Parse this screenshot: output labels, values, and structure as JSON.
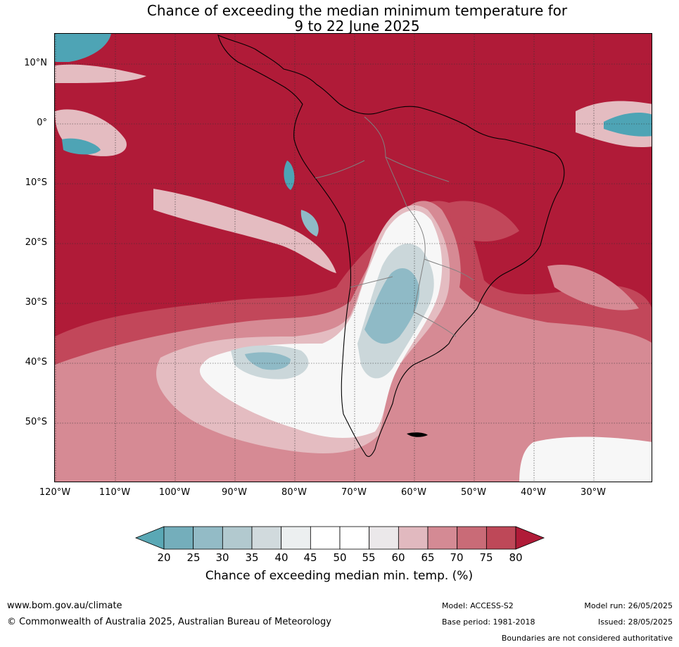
{
  "title": {
    "line1": "Chance of exceeding the median minimum temperature for",
    "line2": "9 to 22 June 2025"
  },
  "map": {
    "lat_labels": [
      "10°N",
      "0°",
      "10°S",
      "20°S",
      "30°S",
      "40°S",
      "50°S"
    ],
    "lon_labels": [
      "120°W",
      "110°W",
      "100°W",
      "90°W",
      "80°W",
      "70°W",
      "60°W",
      "50°W",
      "40°W",
      "30°W"
    ],
    "colors": {
      "very_high": "#b01b38",
      "high": "#c2475a",
      "mid_high": "#d68a94",
      "low_high": "#e4bcc1",
      "neutral": "#f7f7f7",
      "low": "#cbd7da",
      "lower": "#8fbac6",
      "lowest": "#4ea4b5",
      "coast": "#000000",
      "border": "#808080"
    }
  },
  "colorbar": {
    "ticks": [
      "20",
      "25",
      "30",
      "35",
      "40",
      "45",
      "50",
      "55",
      "60",
      "65",
      "70",
      "75",
      "80"
    ],
    "colors": [
      "#5aa8b5",
      "#74aebb",
      "#93bbc6",
      "#b2c9cf",
      "#d1dadd",
      "#eceff0",
      "#ffffff",
      "#ffffff",
      "#ebe8ea",
      "#e1b9bf",
      "#d48a94",
      "#c96b77",
      "#be4858",
      "#b01b38"
    ],
    "label": "Chance of exceeding median min. temp. (%)"
  },
  "footer": {
    "url": "www.bom.gov.au/climate",
    "copyright": "© Commonwealth of Australia 2025, Australian Bureau of Meteorology",
    "model": "Model: ACCESS-S2",
    "base_period": "Base period: 1981-2018",
    "model_run": "Model run: 26/05/2025",
    "issued": "Issued: 28/05/2025",
    "disclaimer": "Boundaries are not considered authoritative"
  }
}
